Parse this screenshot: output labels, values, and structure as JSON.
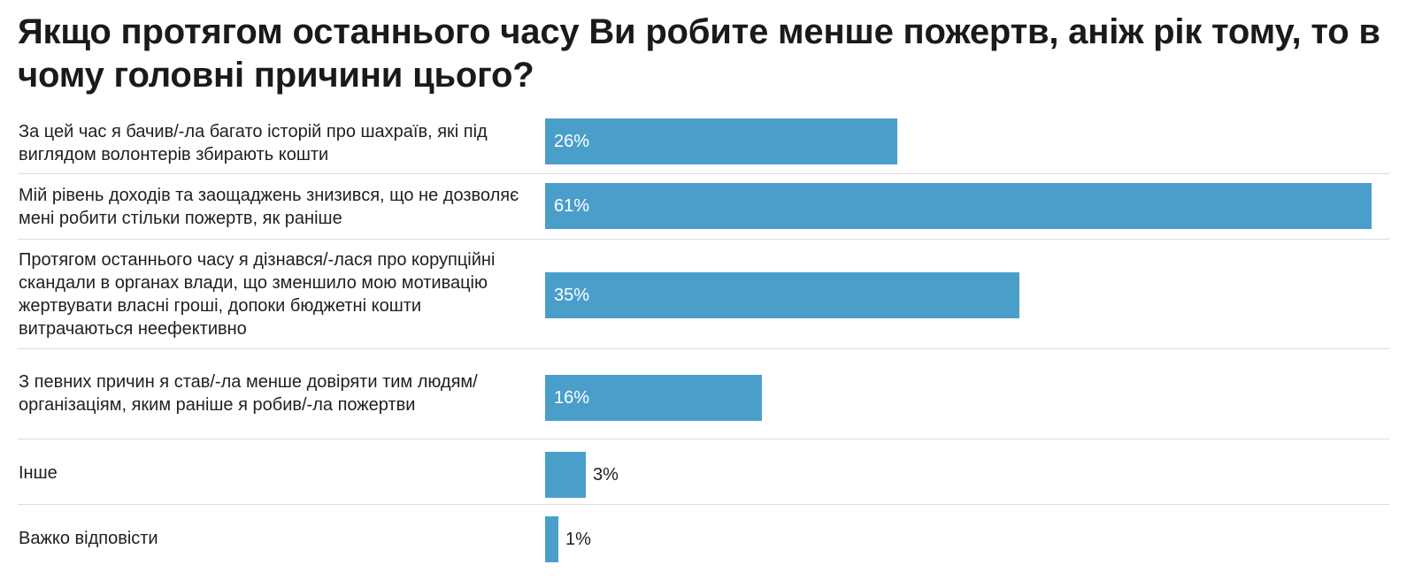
{
  "chart_data": {
    "type": "bar",
    "orientation": "horizontal",
    "title": "Якщо протягом останнього часу Ви робите менше пожертв, аніж рік тому, то в чому головні причини цього?",
    "categories": [
      "За цей час я бачив/-ла багато історій про шахраїв, які під виглядом волонтерів збирають кошти",
      "Мій рівень доходів та заощаджень знизився, що не дозволяє мені робити стільки пожертв, як раніше",
      "Протягом останнього часу я дізнався/-лася про корупційні скандали в органах влади, що зменшило мою мотивацію жертвувати власні гроші, допоки бюджетні кошти витрачаються неефективно",
      "З певних причин я став/-ла менше довіряти тим людям/організаціям, яким раніше я робив/-ла пожертви",
      "Інше",
      "Важко відповісти"
    ],
    "values": [
      26,
      61,
      35,
      16,
      3,
      1
    ],
    "value_labels": [
      "26%",
      "61%",
      "35%",
      "16%",
      "3%",
      "1%"
    ],
    "xlim": [
      0,
      61
    ],
    "grid": false,
    "legend": "none",
    "bar_color": "#4a9fca"
  }
}
